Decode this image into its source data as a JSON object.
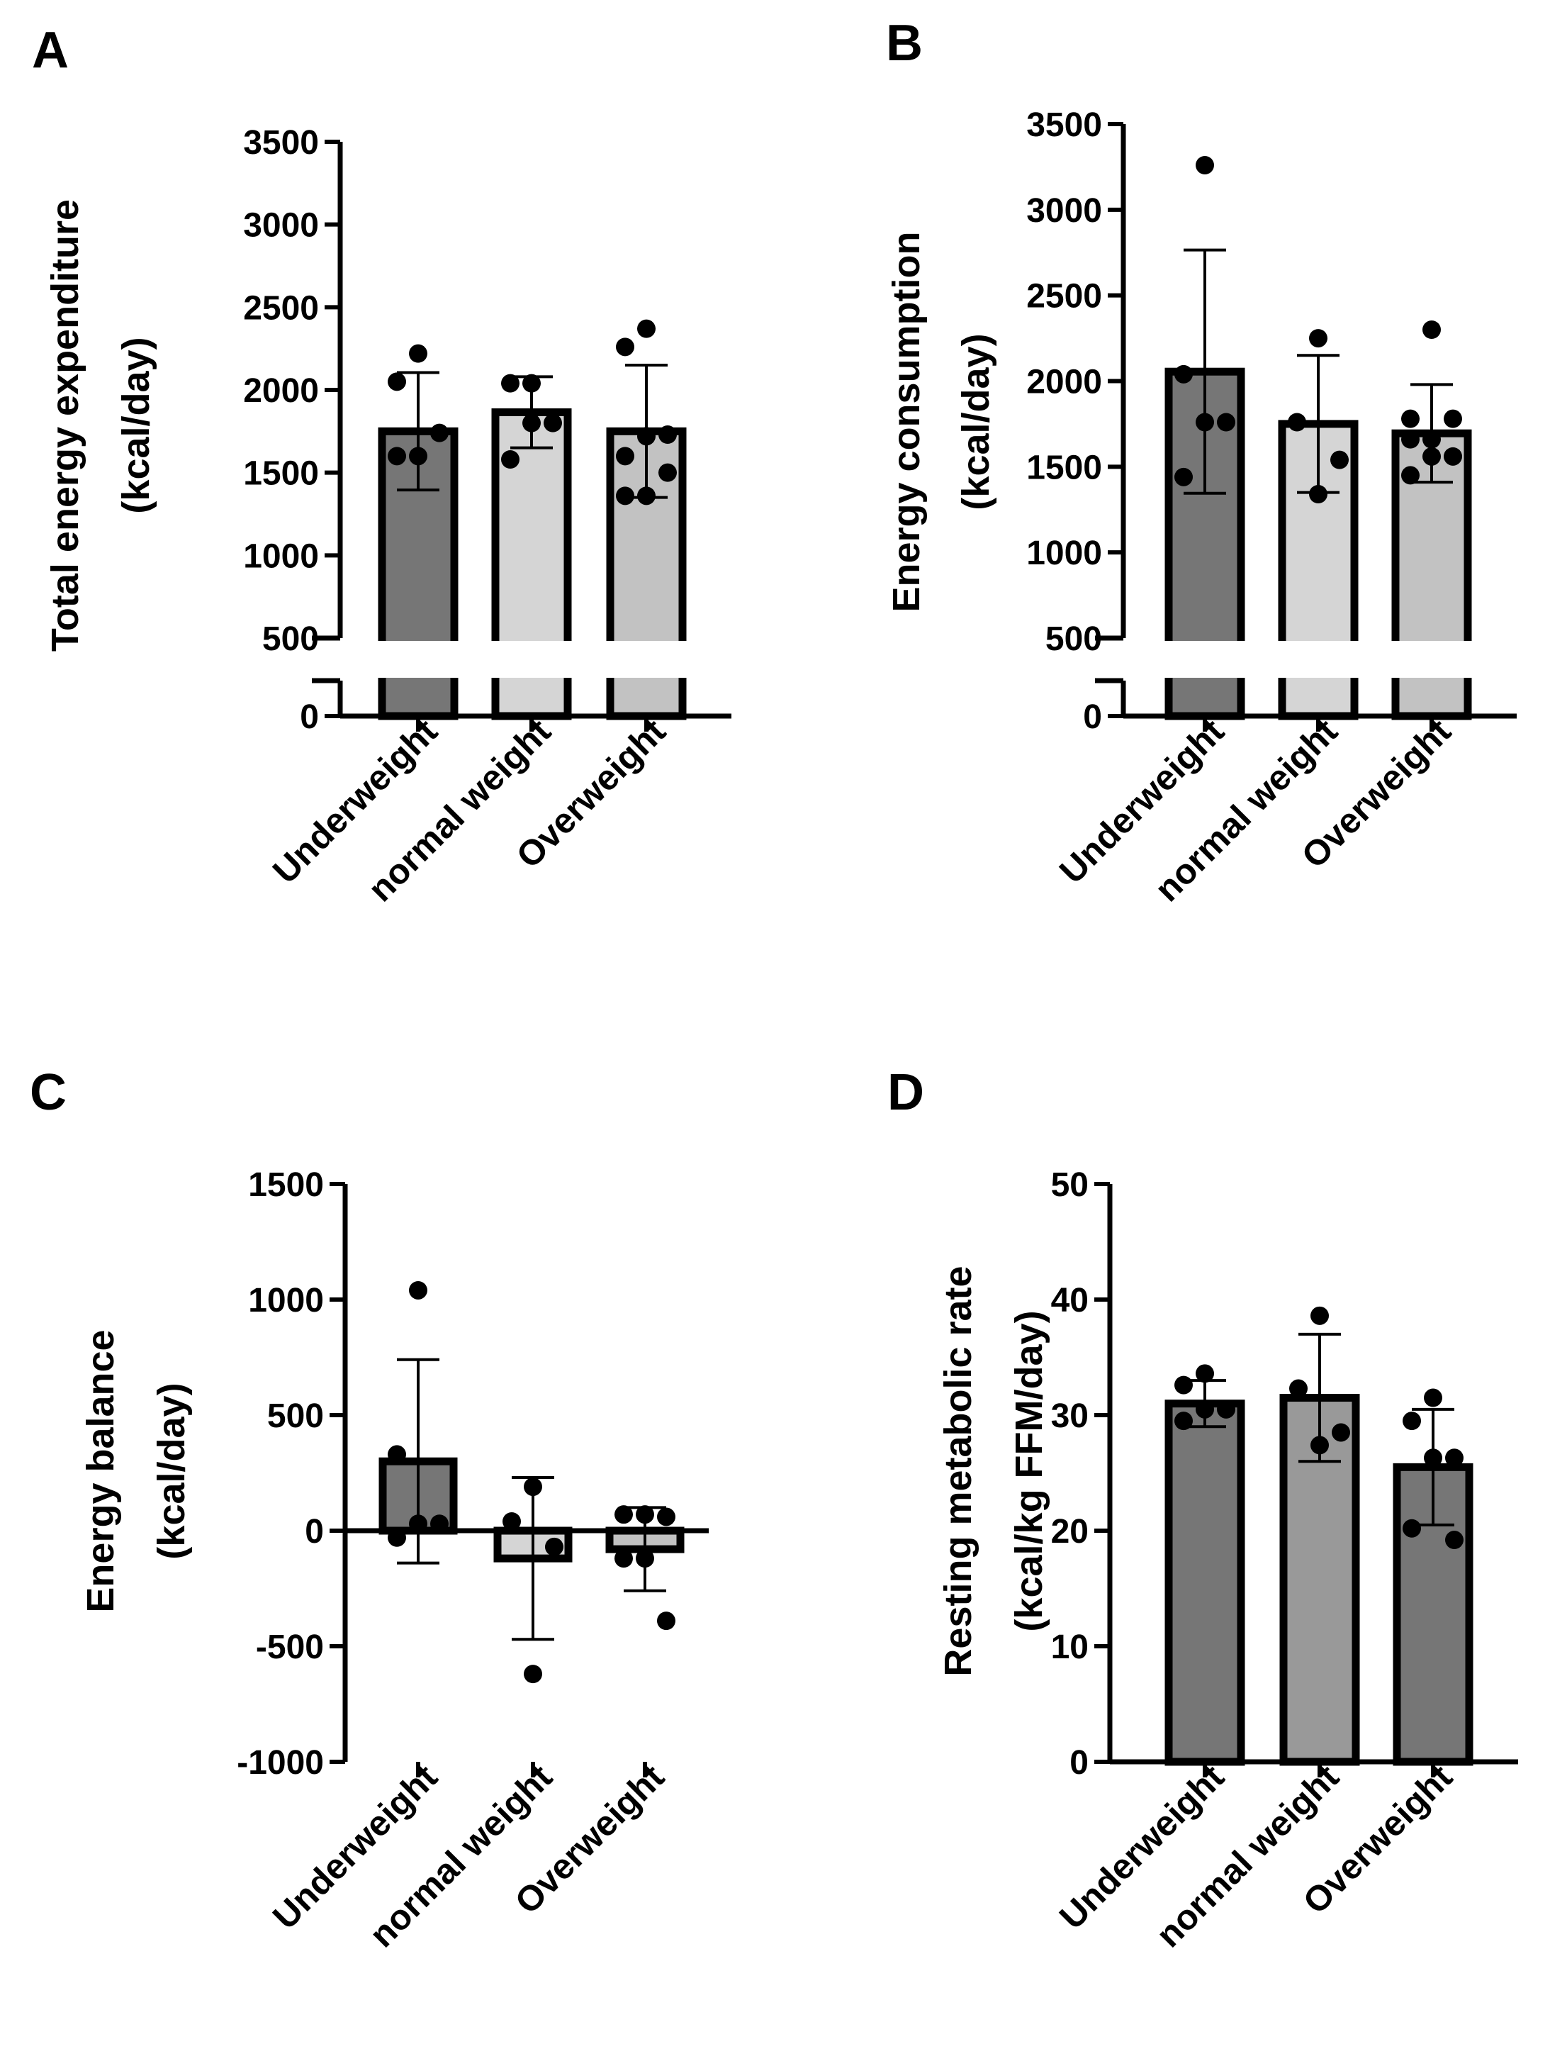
{
  "colors": {
    "background": "#ffffff",
    "axis": "#000000",
    "bar_dark": "#767676",
    "bar_light": "#d5d5d5",
    "bar_mid": "#c2c2c2",
    "bar_slate": "#999999"
  },
  "chart_data": [
    {
      "id": "A",
      "type": "bar",
      "panel_label": "A",
      "ylabel_lines": [
        "Total energy expenditure",
        "(kcal/day)"
      ],
      "categories": [
        "Underweight",
        "normal weight",
        "Overweight"
      ],
      "ylim": [
        0,
        3500
      ],
      "yticks": [
        0,
        500,
        1000,
        1500,
        2000,
        2500,
        3000,
        3500
      ],
      "axis_break": {
        "from": 0,
        "to": 500
      },
      "series": [
        {
          "name": "mean",
          "values": [
            1750,
            1865,
            1750
          ]
        },
        {
          "name": "sd",
          "values": [
            355,
            215,
            400
          ]
        }
      ],
      "bar_colors": [
        "#767676",
        "#d5d5d5",
        "#c2c2c2"
      ],
      "points": [
        [
          2220,
          2050,
          1740,
          1600,
          1600
        ],
        [
          2040,
          2040,
          1800,
          1800,
          1580
        ],
        [
          2370,
          2260,
          1730,
          1720,
          1600,
          1500,
          1360,
          1360
        ]
      ]
    },
    {
      "id": "B",
      "type": "bar",
      "panel_label": "B",
      "ylabel_lines": [
        "Energy consumption",
        "(kcal/day)"
      ],
      "categories": [
        "Underweight",
        "normal weight",
        "Overweight"
      ],
      "ylim": [
        0,
        3500
      ],
      "yticks": [
        0,
        500,
        1000,
        1500,
        2000,
        2500,
        3000,
        3500
      ],
      "axis_break": {
        "from": 0,
        "to": 500
      },
      "series": [
        {
          "name": "mean",
          "values": [
            2055,
            1750,
            1695
          ]
        },
        {
          "name": "sd",
          "values": [
            710,
            400,
            285
          ]
        }
      ],
      "bar_colors": [
        "#767676",
        "#d5d5d5",
        "#c2c2c2"
      ],
      "points": [
        [
          3260,
          2040,
          1760,
          1760,
          1440
        ],
        [
          2250,
          1760,
          1540,
          1340
        ],
        [
          2300,
          1780,
          1780,
          1660,
          1660,
          1560,
          1560,
          1450
        ]
      ]
    },
    {
      "id": "C",
      "type": "bar",
      "panel_label": "C",
      "ylabel_lines": [
        "Energy balance",
        "(kcal/day)"
      ],
      "categories": [
        "Underweight",
        "normal weight",
        "Overweight"
      ],
      "ylim": [
        -1000,
        1500
      ],
      "yticks": [
        -1000,
        -500,
        0,
        500,
        1000,
        1500
      ],
      "series": [
        {
          "name": "mean",
          "values": [
            300,
            -120,
            -80
          ]
        },
        {
          "name": "sd",
          "values": [
            440,
            350,
            180
          ]
        }
      ],
      "bar_colors": [
        "#767676",
        "#d5d5d5",
        "#c2c2c2"
      ],
      "points": [
        [
          1040,
          330,
          30,
          30,
          -30
        ],
        [
          190,
          40,
          -70,
          -620
        ],
        [
          70,
          70,
          60,
          -120,
          -120,
          -390
        ]
      ]
    },
    {
      "id": "D",
      "type": "bar",
      "panel_label": "D",
      "ylabel_lines": [
        "Resting metabolic rate",
        "(kcal/kg  FFM/day)"
      ],
      "categories": [
        "Underweight",
        "normal weight",
        "Overweight"
      ],
      "ylim": [
        0,
        50
      ],
      "yticks": [
        0,
        10,
        20,
        30,
        40,
        50
      ],
      "series": [
        {
          "name": "mean",
          "values": [
            31,
            31.5,
            25.5
          ]
        },
        {
          "name": "sd",
          "values": [
            2.0,
            5.5,
            5.0
          ]
        }
      ],
      "bar_colors": [
        "#767676",
        "#999999",
        "#767676"
      ],
      "points": [
        [
          33.6,
          32.6,
          30.5,
          30.5,
          29.5
        ],
        [
          38.6,
          32.3,
          28.5,
          27.4
        ],
        [
          31.5,
          29.5,
          26.3,
          26.3,
          20.2,
          19.2
        ]
      ]
    }
  ]
}
